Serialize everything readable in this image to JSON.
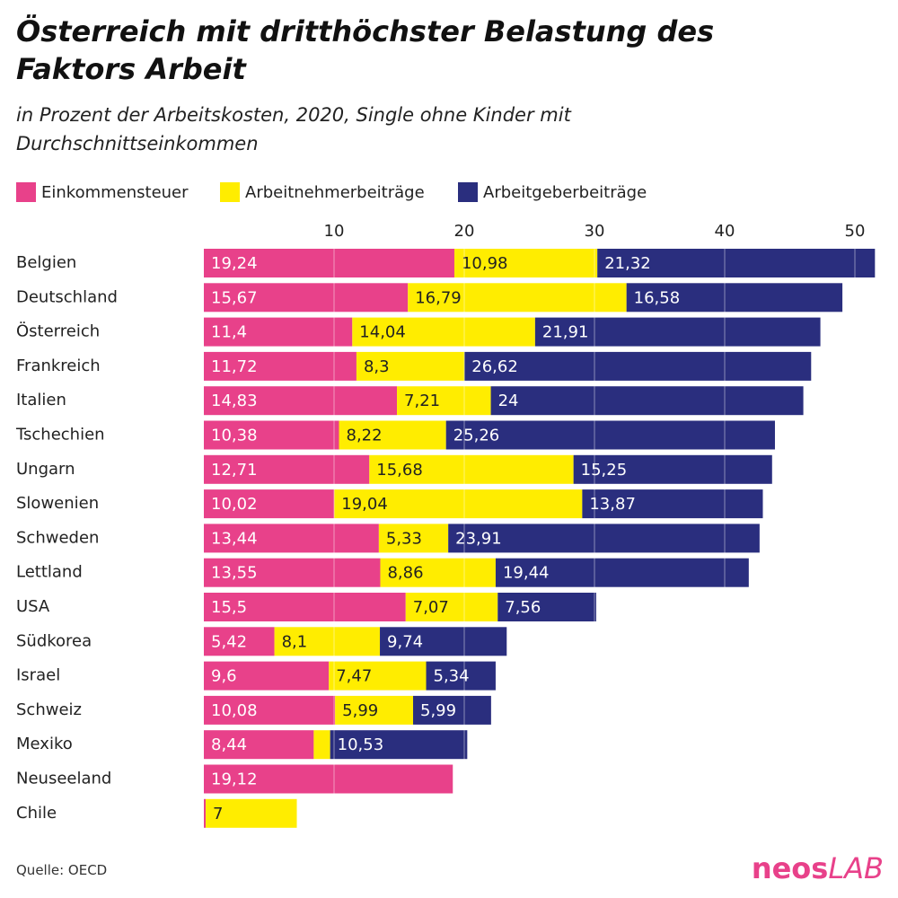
{
  "chart_data": {
    "type": "stacked-barh",
    "title": "Österreich mit dritthöchster Belastung des Faktors Arbeit",
    "subtitle": "in Prozent der Arbeitskosten, 2020, Single ohne Kinder mit Durchschnittseinkommen",
    "source": "Quelle: OECD",
    "categories": [
      "Belgien",
      "Deutschland",
      "Österreich",
      "Frankreich",
      "Italien",
      "Tschechien",
      "Ungarn",
      "Slowenien",
      "Schweden",
      "Lettland",
      "USA",
      "Südkorea",
      "Israel",
      "Schweiz",
      "Mexiko",
      "Neuseeland",
      "Chile"
    ],
    "series": [
      {
        "name": "Einkommensteuer",
        "color": "#e8418a",
        "label_color": "#ffffff",
        "values": [
          19.24,
          15.67,
          11.4,
          11.72,
          14.83,
          10.38,
          12.71,
          10.02,
          13.44,
          13.55,
          15.5,
          5.42,
          9.6,
          10.08,
          8.44,
          19.12,
          0.14
        ],
        "value_labels": [
          "19,24",
          "15,67",
          "11,4",
          "11,72",
          "14,83",
          "10,38",
          "12,71",
          "10,02",
          "13,44",
          "13,55",
          "15,5",
          "5,42",
          "9,6",
          "10,08",
          "8,44",
          "19,12",
          null
        ]
      },
      {
        "name": "Arbeitnehmerbeiträge",
        "color": "#ffed00",
        "label_color": "#222222",
        "values": [
          10.98,
          16.79,
          14.04,
          8.3,
          7.21,
          8.22,
          15.68,
          19.04,
          5.33,
          8.86,
          7.07,
          8.1,
          7.47,
          5.99,
          1.26,
          null,
          7
        ],
        "value_labels": [
          "10,98",
          "16,79",
          "14,04",
          "8,3",
          "7,21",
          "8,22",
          "15,68",
          "19,04",
          "5,33",
          "8,86",
          "7,07",
          "8,1",
          "7,47",
          "5,99",
          null,
          null,
          "7"
        ]
      },
      {
        "name": "Arbeitgeberbeiträge",
        "color": "#2a2e7e",
        "label_color": "#ffffff",
        "values": [
          21.32,
          16.58,
          21.91,
          26.62,
          24,
          25.26,
          15.25,
          13.87,
          23.91,
          19.44,
          7.56,
          9.74,
          5.34,
          5.99,
          10.53,
          null,
          null
        ],
        "value_labels": [
          "21,32",
          "16,58",
          "21,91",
          "26,62",
          "24",
          "25,26",
          "15,25",
          "13,87",
          "23,91",
          "19,44",
          "7,56",
          "9,74",
          "5,34",
          "5,99",
          "10,53",
          null,
          null
        ]
      }
    ],
    "xlim": [
      0,
      52
    ],
    "xticks": [
      10,
      20,
      30,
      40,
      50
    ],
    "grid": true
  },
  "logo": {
    "brand": "neos",
    "suffix": "LAB"
  }
}
